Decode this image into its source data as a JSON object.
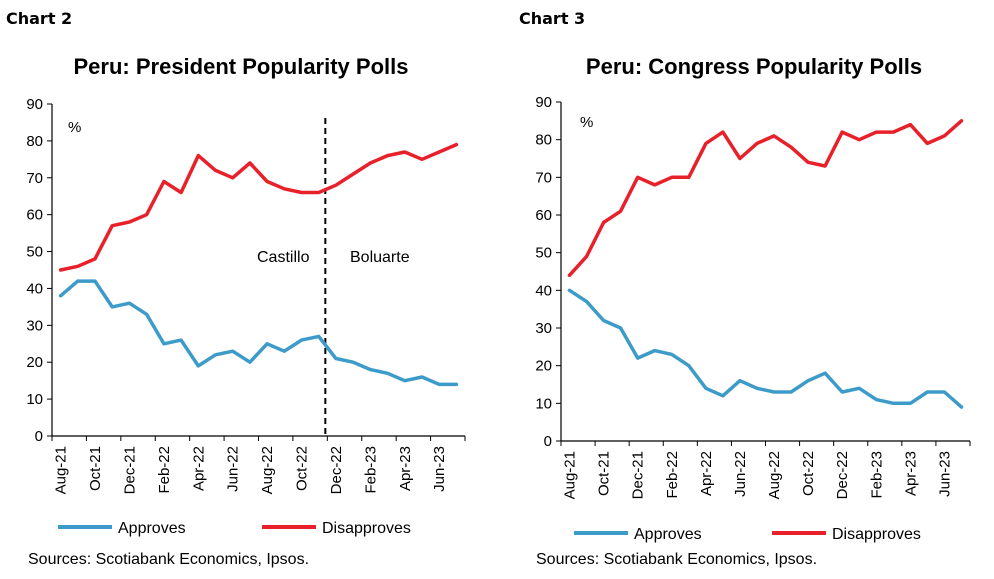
{
  "colors": {
    "approves": "#3d9bc9",
    "disapproves": "#e8202a",
    "axis": "#000000"
  },
  "chart_data": [
    {
      "type": "line",
      "label": "Chart 2",
      "title": "Peru: President Popularity Polls",
      "unit": "%",
      "ylim": [
        0,
        90
      ],
      "yticks": [
        0,
        10,
        20,
        30,
        40,
        50,
        60,
        70,
        80,
        90
      ],
      "x_tick_labels": [
        "Aug-21",
        "Oct-21",
        "Dec-21",
        "Feb-22",
        "Apr-22",
        "Jun-22",
        "Aug-22",
        "Oct-22",
        "Dec-22",
        "Feb-23",
        "Apr-23",
        "Jun-23"
      ],
      "x_label_every": 2,
      "months": 24,
      "divider_after_index": 15,
      "annotations": [
        "Castillo",
        "Boluarte"
      ],
      "series": [
        {
          "name": "Approves",
          "color_key": "approves",
          "values": [
            38,
            42,
            42,
            35,
            36,
            33,
            25,
            26,
            19,
            22,
            23,
            20,
            25,
            23,
            26,
            27,
            21,
            20,
            18,
            17,
            15,
            16,
            14,
            14
          ]
        },
        {
          "name": "Disapproves",
          "color_key": "disapproves",
          "values": [
            45,
            46,
            48,
            57,
            58,
            60,
            69,
            66,
            76,
            72,
            70,
            74,
            69,
            67,
            66,
            66,
            68,
            71,
            74,
            76,
            77,
            75,
            77,
            79
          ]
        }
      ],
      "grid": false,
      "legend": "bottom",
      "source": "Sources: Scotiabank Economics, Ipsos."
    },
    {
      "type": "line",
      "label": "Chart 3",
      "title": "Peru: Congress Popularity Polls",
      "unit": "%",
      "ylim": [
        0,
        90
      ],
      "yticks": [
        0,
        10,
        20,
        30,
        40,
        50,
        60,
        70,
        80,
        90
      ],
      "x_tick_labels": [
        "Aug-21",
        "Oct-21",
        "Dec-21",
        "Feb-22",
        "Apr-22",
        "Jun-22",
        "Aug-22",
        "Oct-22",
        "Dec-22",
        "Feb-23",
        "Apr-23",
        "Jun-23"
      ],
      "x_label_every": 2,
      "months": 24,
      "series": [
        {
          "name": "Approves",
          "color_key": "approves",
          "values": [
            40,
            37,
            32,
            30,
            22,
            24,
            23,
            20,
            14,
            12,
            16,
            14,
            13,
            13,
            16,
            18,
            13,
            14,
            11,
            10,
            10,
            13,
            13,
            9
          ]
        },
        {
          "name": "Disapproves",
          "color_key": "disapproves",
          "values": [
            44,
            49,
            58,
            61,
            70,
            68,
            70,
            70,
            79,
            82,
            75,
            79,
            81,
            78,
            74,
            73,
            82,
            80,
            82,
            82,
            84,
            79,
            81,
            85
          ]
        }
      ],
      "grid": false,
      "legend": "bottom",
      "source": "Sources: Scotiabank Economics, Ipsos."
    }
  ]
}
